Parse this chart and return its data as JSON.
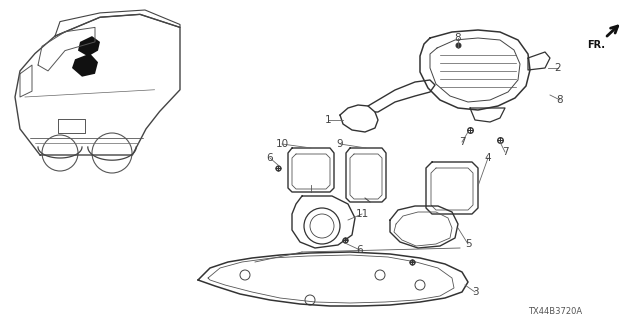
{
  "bg_color": "#ffffff",
  "diagram_code": "TX44B3720A",
  "fr_label": "FR.",
  "line_color": "#333333",
  "label_color": "#555555",
  "figsize": [
    6.4,
    3.2
  ],
  "dpi": 100
}
